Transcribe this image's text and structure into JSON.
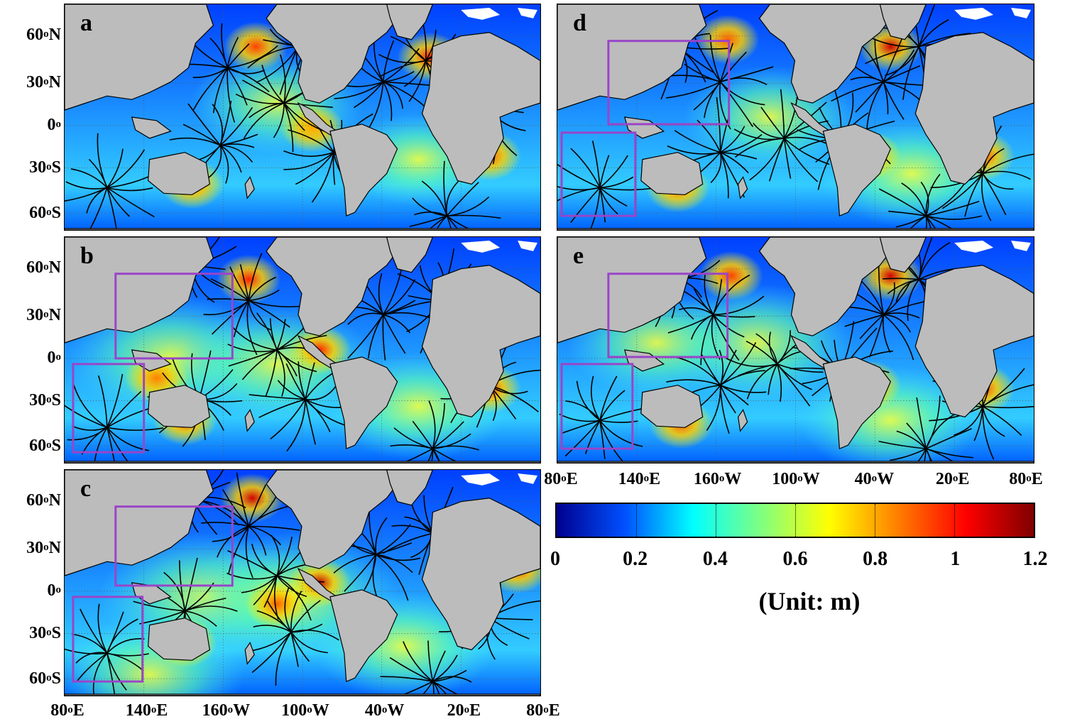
{
  "panels": [
    {
      "label": "a"
    },
    {
      "label": "b"
    },
    {
      "label": "c"
    },
    {
      "label": "d"
    },
    {
      "label": "e"
    }
  ],
  "lat_ticks": [
    {
      "deg": "60",
      "hem": "N"
    },
    {
      "deg": "30",
      "hem": "N"
    },
    {
      "deg": "0",
      "hem": ""
    },
    {
      "deg": "30",
      "hem": "S"
    },
    {
      "deg": "60",
      "hem": "S"
    }
  ],
  "lon_ticks": [
    {
      "deg": "80",
      "hem": "E"
    },
    {
      "deg": "140",
      "hem": "E"
    },
    {
      "deg": "160",
      "hem": "W"
    },
    {
      "deg": "100",
      "hem": "W"
    },
    {
      "deg": "40",
      "hem": "W"
    },
    {
      "deg": "20",
      "hem": "E"
    },
    {
      "deg": "80",
      "hem": "E"
    }
  ],
  "colorbar": {
    "ticks": [
      "0",
      "0.2",
      "0.4",
      "0.6",
      "0.8",
      "1",
      "1.2"
    ],
    "range": [
      0,
      1.2
    ],
    "colormap": [
      "#00008f",
      "#0050ff",
      "#00ffff",
      "#80ff80",
      "#ffff00",
      "#ff7f00",
      "#ff0000",
      "#800000"
    ],
    "unit_label": "(Unit: m)"
  },
  "colors": {
    "land": "#bcbcbc",
    "ocean_low": "#1a5cff",
    "box_outline": "#9a45c8",
    "contour": "#000000"
  }
}
